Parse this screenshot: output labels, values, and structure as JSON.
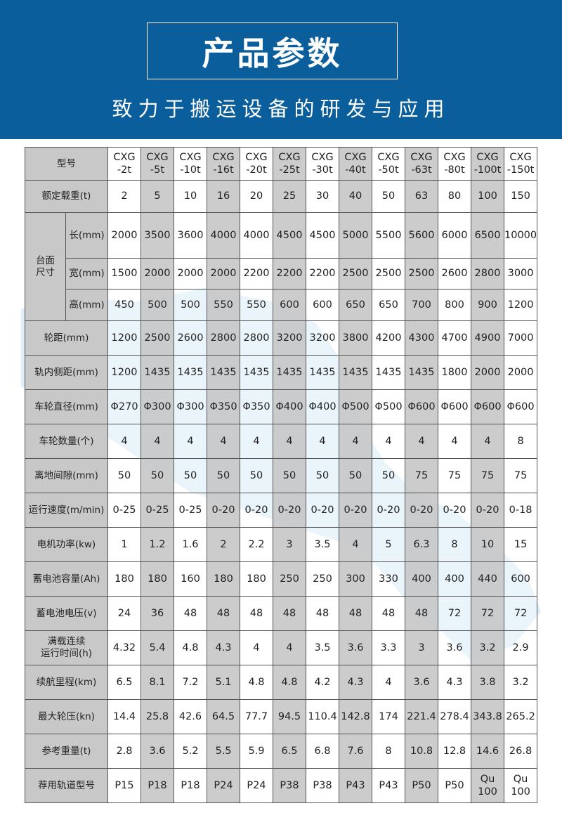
{
  "header": {
    "title": "产品参数",
    "subtitle": "致力于搬运设备的研发与应用",
    "background_color": "#0b5e9c"
  },
  "table": {
    "models": [
      "CXG\n-2t",
      "CXG\n-5t",
      "CXG\n-10t",
      "CXG\n-16t",
      "CXG\n-20t",
      "CXG\n-25t",
      "CXG\n-30t",
      "CXG\n-40t",
      "CXG\n-50t",
      "CXG\n-63t",
      "CXG\n-80t",
      "CXG\n-100t",
      "CXG\n-150t"
    ],
    "model_label": "型号",
    "table_size_label": "台面\n尺寸",
    "rows": [
      {
        "label": "额定载重(t)",
        "values": [
          "2",
          "5",
          "10",
          "16",
          "20",
          "25",
          "30",
          "40",
          "50",
          "63",
          "80",
          "100",
          "150"
        ]
      },
      {
        "label": "长(mm)",
        "sub": true,
        "values": [
          "2000",
          "3500",
          "3600",
          "4000",
          "4000",
          "4500",
          "4500",
          "5000",
          "5500",
          "5600",
          "6000",
          "6500",
          "10000"
        ]
      },
      {
        "label": "宽(mm)",
        "sub": true,
        "values": [
          "1500",
          "2000",
          "2000",
          "2000",
          "2200",
          "2200",
          "2200",
          "2500",
          "2500",
          "2500",
          "2600",
          "2800",
          "3000"
        ]
      },
      {
        "label": "高(mm)",
        "sub": true,
        "values": [
          "450",
          "500",
          "500",
          "550",
          "550",
          "600",
          "600",
          "650",
          "650",
          "700",
          "800",
          "900",
          "1200"
        ]
      },
      {
        "label": "轮距(mm)",
        "values": [
          "1200",
          "2500",
          "2600",
          "2800",
          "2800",
          "3200",
          "3200",
          "3800",
          "4200",
          "4300",
          "4700",
          "4900",
          "7000"
        ]
      },
      {
        "label": "轨内侧距(mm)",
        "values": [
          "1200",
          "1435",
          "1435",
          "1435",
          "1435",
          "1435",
          "1435",
          "1435",
          "1435",
          "1435",
          "1800",
          "2000",
          "2000"
        ]
      },
      {
        "label": "车轮直径(mm)",
        "values": [
          "Φ270",
          "Φ300",
          "Φ300",
          "Φ350",
          "Φ350",
          "Φ400",
          "Φ400",
          "Φ500",
          "Φ500",
          "Φ600",
          "Φ600",
          "Φ600",
          "Φ600"
        ]
      },
      {
        "label": "车轮数量(个)",
        "values": [
          "4",
          "4",
          "4",
          "4",
          "4",
          "4",
          "4",
          "4",
          "4",
          "4",
          "4",
          "4",
          "8"
        ]
      },
      {
        "label": "离地间隙(mm)",
        "values": [
          "50",
          "50",
          "50",
          "50",
          "50",
          "50",
          "50",
          "50",
          "50",
          "75",
          "75",
          "75",
          "75"
        ]
      },
      {
        "label": "运行速度(m/min)",
        "values": [
          "0-25",
          "0-25",
          "0-25",
          "0-20",
          "0-20",
          "0-20",
          "0-20",
          "0-20",
          "0-20",
          "0-20",
          "0-20",
          "0-20",
          "0-18"
        ]
      },
      {
        "label": "电机功率(kw)",
        "values": [
          "1",
          "1.2",
          "1.6",
          "2",
          "2.2",
          "3",
          "3.5",
          "4",
          "5",
          "6.3",
          "8",
          "10",
          "15"
        ]
      },
      {
        "label": "蓄电池容量(Ah)",
        "values": [
          "180",
          "180",
          "160",
          "180",
          "180",
          "250",
          "250",
          "300",
          "330",
          "400",
          "400",
          "440",
          "600"
        ]
      },
      {
        "label": "蓄电池电压(v)",
        "values": [
          "24",
          "36",
          "48",
          "48",
          "48",
          "48",
          "48",
          "48",
          "48",
          "48",
          "72",
          "72",
          "72"
        ]
      },
      {
        "label": "满载连续\n运行时间(h)",
        "values": [
          "4.32",
          "5.4",
          "4.8",
          "4.3",
          "4",
          "4",
          "3.5",
          "3.6",
          "3.3",
          "3",
          "3.6",
          "3.2",
          "2.9"
        ]
      },
      {
        "label": "续航里程(km)",
        "values": [
          "6.5",
          "8.1",
          "7.2",
          "5.1",
          "4.8",
          "4.8",
          "4.2",
          "4.3",
          "4",
          "3.6",
          "4.3",
          "3.8",
          "3.2"
        ]
      },
      {
        "label": "最大轮压(kn)",
        "values": [
          "14.4",
          "25.8",
          "42.6",
          "64.5",
          "77.7",
          "94.5",
          "110.4",
          "142.8",
          "174",
          "221.4",
          "278.4",
          "343.8",
          "265.2"
        ]
      },
      {
        "label": "参考重量(t)",
        "values": [
          "2.8",
          "3.6",
          "5.2",
          "5.5",
          "5.9",
          "6.5",
          "6.8",
          "7.6",
          "8",
          "10.8",
          "12.8",
          "14.6",
          "26.8"
        ]
      },
      {
        "label": "荐用轨道型号",
        "values": [
          "P15",
          "P18",
          "P18",
          "P24",
          "P24",
          "P38",
          "P38",
          "P43",
          "P43",
          "P50",
          "P50",
          "Qu\n100",
          "Qu\n100"
        ]
      }
    ]
  }
}
